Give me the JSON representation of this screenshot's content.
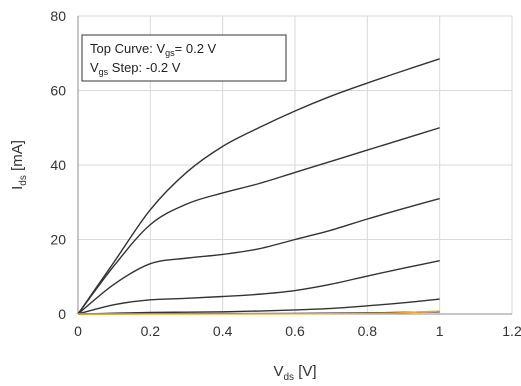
{
  "chart_data": {
    "type": "line",
    "xlabel": {
      "main": "V",
      "sub": "ds",
      "unit": " [V]"
    },
    "ylabel": {
      "main": "I",
      "sub": "ds",
      "unit": " [mA]"
    },
    "xlim": [
      0,
      1.2
    ],
    "ylim": [
      0,
      80
    ],
    "xticks": [
      "0",
      "0.2",
      "0.4",
      "0.6",
      "0.8",
      "1",
      "1.2"
    ],
    "yticks": [
      "0",
      "20",
      "40",
      "60",
      "80"
    ],
    "grid": true,
    "legend_box": {
      "line1": {
        "a": "Top Curve: V",
        "sub": "gs",
        "b": "= 0.2 V"
      },
      "line2": {
        "a": "V",
        "sub": "gs",
        "b": " Step: -0.2 V"
      }
    },
    "series": [
      {
        "color": "#333333",
        "x": [
          0,
          0.1,
          0.2,
          0.3,
          0.4,
          0.5,
          0.6,
          0.7,
          0.8,
          0.9,
          1.0
        ],
        "y": [
          0,
          14,
          28,
          38,
          45,
          50,
          54.5,
          58.5,
          62,
          65.3,
          68.5
        ]
      },
      {
        "color": "#333333",
        "x": [
          0,
          0.1,
          0.2,
          0.3,
          0.4,
          0.5,
          0.6,
          0.7,
          0.8,
          0.9,
          1.0
        ],
        "y": [
          0,
          13,
          24,
          29.5,
          32.5,
          35,
          38,
          41,
          44,
          47,
          50
        ]
      },
      {
        "color": "#333333",
        "x": [
          0,
          0.1,
          0.2,
          0.3,
          0.4,
          0.5,
          0.6,
          0.7,
          0.8,
          0.9,
          1.0
        ],
        "y": [
          0,
          8,
          13.5,
          15,
          16,
          17.5,
          20,
          22.5,
          25.5,
          28.3,
          31
        ]
      },
      {
        "color": "#333333",
        "x": [
          0,
          0.1,
          0.2,
          0.3,
          0.4,
          0.5,
          0.6,
          0.7,
          0.8,
          0.9,
          1.0
        ],
        "y": [
          0,
          2.5,
          3.8,
          4.2,
          4.7,
          5.3,
          6.3,
          8,
          10.2,
          12.3,
          14.3
        ]
      },
      {
        "color": "#333333",
        "x": [
          0,
          0.1,
          0.2,
          0.3,
          0.4,
          0.5,
          0.6,
          0.7,
          0.8,
          0.9,
          1.0
        ],
        "y": [
          0,
          0.2,
          0.4,
          0.5,
          0.6,
          0.8,
          1.1,
          1.5,
          2.2,
          3.0,
          4.0
        ]
      },
      {
        "color": "#333333",
        "x": [
          0,
          0.2,
          0.4,
          0.6,
          0.8,
          1.0
        ],
        "y": [
          0,
          0.05,
          0.1,
          0.15,
          0.3,
          0.6
        ]
      },
      {
        "color": "#f5a623",
        "x": [
          0,
          0.2,
          0.4,
          0.6,
          0.8,
          0.9,
          1.0
        ],
        "y": [
          0,
          0,
          0.02,
          0.05,
          0.15,
          0.35,
          0.8
        ]
      }
    ]
  }
}
